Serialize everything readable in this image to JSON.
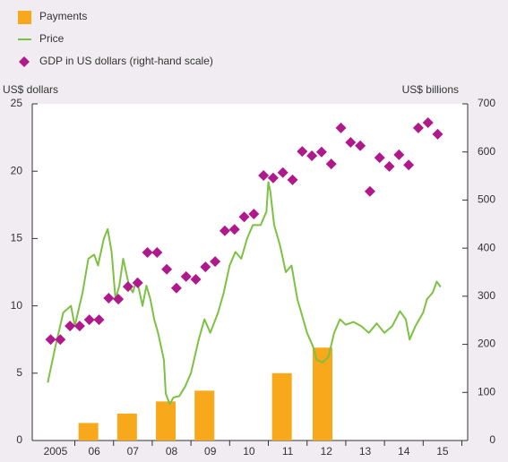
{
  "chart_data": {
    "type": "combo",
    "y_label": "US$ dollars",
    "y2_label": "US$ billions",
    "xlim": [
      2004.9,
      2016.15
    ],
    "xticks": [
      {
        "value": 2005.5,
        "label": "2005"
      },
      {
        "value": 2006.5,
        "label": "06"
      },
      {
        "value": 2007.5,
        "label": "07"
      },
      {
        "value": 2008.5,
        "label": "08"
      },
      {
        "value": 2009.5,
        "label": "09"
      },
      {
        "value": 2010.5,
        "label": "10"
      },
      {
        "value": 2011.5,
        "label": "11"
      },
      {
        "value": 2012.5,
        "label": "12"
      },
      {
        "value": 2013.5,
        "label": "13"
      },
      {
        "value": 2014.5,
        "label": "14"
      },
      {
        "value": 2015.5,
        "label": "15"
      }
    ],
    "xminor": [
      2006,
      2007,
      2008,
      2009,
      2010,
      2011,
      2012,
      2013,
      2014,
      2015,
      2016
    ],
    "ylim": [
      0,
      25
    ],
    "yticks": [
      0,
      5,
      10,
      15,
      20,
      25
    ],
    "y2lim": [
      0,
      700
    ],
    "y2ticks": [
      0,
      100,
      200,
      300,
      400,
      500,
      600,
      700
    ],
    "series": [
      {
        "name": "Payments",
        "type": "bar",
        "color": "#f7a81b",
        "x": [
          2006.35,
          2007.35,
          2008.35,
          2009.35,
          2011.35,
          2012.4
        ],
        "values": [
          1.3,
          2.0,
          2.9,
          3.7,
          5.0,
          6.9
        ]
      },
      {
        "name": "Price",
        "type": "line",
        "color": "#7cc242",
        "x": [
          2005.3,
          2005.5,
          2005.7,
          2005.9,
          2006.0,
          2006.2,
          2006.35,
          2006.5,
          2006.6,
          2006.75,
          2006.85,
          2006.95,
          2007.05,
          2007.15,
          2007.25,
          2007.4,
          2007.5,
          2007.6,
          2007.75,
          2007.85,
          2007.95,
          2008.05,
          2008.15,
          2008.3,
          2008.35,
          2008.45,
          2008.55,
          2008.7,
          2008.85,
          2009.0,
          2009.2,
          2009.35,
          2009.5,
          2009.7,
          2009.85,
          2010.0,
          2010.15,
          2010.3,
          2010.45,
          2010.6,
          2010.8,
          2010.95,
          2011.0,
          2011.05,
          2011.15,
          2011.3,
          2011.45,
          2011.6,
          2011.75,
          2011.9,
          2012.0,
          2012.15,
          2012.25,
          2012.4,
          2012.55,
          2012.7,
          2012.85,
          2013.0,
          2013.2,
          2013.4,
          2013.6,
          2013.8,
          2014.0,
          2014.2,
          2014.4,
          2014.55,
          2014.65,
          2014.8,
          2015.0,
          2015.1,
          2015.25,
          2015.35,
          2015.45
        ],
        "values": [
          4.3,
          7,
          9.5,
          10,
          8.5,
          11,
          13.5,
          13.8,
          13,
          15,
          15.7,
          14,
          10.5,
          11.5,
          13.5,
          11.5,
          11,
          12,
          10,
          11.5,
          10.5,
          9,
          8,
          6,
          3.5,
          2.7,
          3.2,
          3.3,
          4,
          5,
          7.5,
          9,
          8,
          9.5,
          11,
          13,
          14,
          13.5,
          15,
          16,
          16,
          17,
          19.2,
          18.5,
          16,
          14.5,
          12.5,
          13,
          10.5,
          9,
          8,
          7,
          6,
          5.8,
          6.2,
          8,
          9,
          8.6,
          8.8,
          8.5,
          8.0,
          8.7,
          8.0,
          8.5,
          9.6,
          9.0,
          7.5,
          8.5,
          9.5,
          10.5,
          11,
          11.8,
          11.4
        ]
      },
      {
        "name": "GDP in US dollars (right-hand scale)",
        "type": "scatter",
        "axis": "y2",
        "color": "#b0198c",
        "x": [
          2005.375,
          2005.625,
          2005.875,
          2006.125,
          2006.375,
          2006.625,
          2006.875,
          2007.125,
          2007.375,
          2007.625,
          2007.875,
          2008.125,
          2008.375,
          2008.625,
          2008.875,
          2009.125,
          2009.375,
          2009.625,
          2009.875,
          2010.125,
          2010.375,
          2010.625,
          2010.875,
          2011.125,
          2011.375,
          2011.625,
          2011.875,
          2012.125,
          2012.375,
          2012.625,
          2012.875,
          2013.125,
          2013.375,
          2013.625,
          2013.875,
          2014.125,
          2014.375,
          2014.625,
          2014.875,
          2015.125,
          2015.375
        ],
        "values": [
          210,
          210,
          238,
          238,
          251,
          251,
          296,
          294,
          320,
          328,
          391,
          391,
          356,
          317,
          341,
          335,
          361,
          372,
          436,
          439,
          465,
          471,
          551,
          546,
          557,
          542,
          601,
          592,
          600,
          575,
          650,
          620,
          613,
          518,
          588,
          570,
          594,
          573,
          650,
          661,
          637
        ]
      }
    ]
  }
}
